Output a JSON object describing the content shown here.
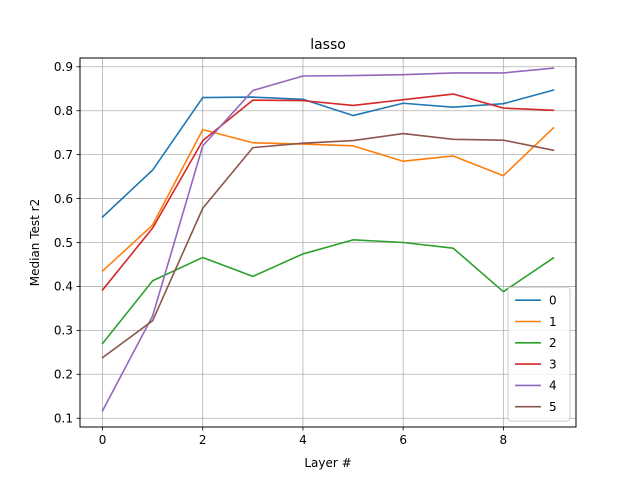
{
  "chart_data": {
    "type": "line",
    "title": "lasso",
    "xlabel": "Layer #",
    "ylabel": "Median Test r2",
    "x": [
      0,
      1,
      2,
      3,
      4,
      5,
      6,
      7,
      8,
      9
    ],
    "xlim": [
      -0.45,
      9.45
    ],
    "ylim": [
      0.08,
      0.92
    ],
    "xticks": [
      0,
      2,
      4,
      6,
      8
    ],
    "yticks": [
      0.1,
      0.2,
      0.3,
      0.4,
      0.5,
      0.6,
      0.7,
      0.8,
      0.9
    ],
    "xtick_labels": [
      "0",
      "2",
      "4",
      "6",
      "8"
    ],
    "ytick_labels": [
      "0.1",
      "0.2",
      "0.3",
      "0.4",
      "0.5",
      "0.6",
      "0.7",
      "0.8",
      "0.9"
    ],
    "grid": true,
    "legend_position": "lower-right",
    "series": [
      {
        "name": "0",
        "color": "#1f77b4",
        "values": [
          0.558,
          0.665,
          0.83,
          0.831,
          0.826,
          0.789,
          0.817,
          0.808,
          0.816,
          0.847
        ]
      },
      {
        "name": "1",
        "color": "#ff7f0e",
        "values": [
          0.435,
          0.54,
          0.757,
          0.727,
          0.724,
          0.72,
          0.685,
          0.697,
          0.652,
          0.761
        ]
      },
      {
        "name": "2",
        "color": "#2ca02c",
        "values": [
          0.27,
          0.413,
          0.466,
          0.423,
          0.474,
          0.506,
          0.5,
          0.487,
          0.388,
          0.465
        ]
      },
      {
        "name": "3",
        "color": "#d62728",
        "values": [
          0.392,
          0.533,
          0.732,
          0.824,
          0.823,
          0.812,
          0.825,
          0.838,
          0.806,
          0.801
        ]
      },
      {
        "name": "4",
        "color": "#9467bd",
        "values": [
          0.117,
          0.333,
          0.72,
          0.846,
          0.879,
          0.88,
          0.882,
          0.886,
          0.886,
          0.897
        ]
      },
      {
        "name": "5",
        "color": "#8c564b",
        "values": [
          0.238,
          0.322,
          0.578,
          0.716,
          0.726,
          0.732,
          0.748,
          0.735,
          0.733,
          0.71
        ]
      }
    ]
  }
}
